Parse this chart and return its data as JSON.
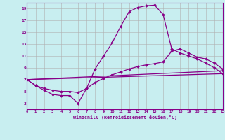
{
  "xlabel": "Windchill (Refroidissement éolien,°C)",
  "bg_color": "#c8eef0",
  "line_color": "#880088",
  "grid_color": "#b0b0b0",
  "xmin": 0,
  "xmax": 23,
  "ymin": 2,
  "ymax": 20,
  "yticks": [
    3,
    5,
    7,
    9,
    11,
    13,
    15,
    17,
    19
  ],
  "xticks": [
    0,
    1,
    2,
    3,
    4,
    5,
    6,
    7,
    8,
    9,
    10,
    11,
    12,
    13,
    14,
    15,
    16,
    17,
    18,
    19,
    20,
    21,
    22,
    23
  ],
  "lines": [
    {
      "x": [
        0,
        1,
        2,
        3,
        4,
        5,
        6,
        7,
        8,
        9,
        10,
        11,
        12,
        13,
        14,
        15,
        16,
        17,
        18,
        19,
        20,
        21,
        22,
        23
      ],
      "y": [
        7,
        6,
        5.2,
        4.5,
        4.3,
        4.3,
        3.0,
        5.5,
        8.8,
        11.0,
        13.2,
        16.0,
        18.5,
        19.2,
        19.5,
        19.6,
        18.0,
        12.2,
        11.5,
        11.0,
        10.5,
        9.8,
        9.0,
        8.0
      ]
    },
    {
      "x": [
        0,
        1,
        2,
        3,
        4,
        5,
        6,
        7,
        8,
        9,
        10,
        11,
        12,
        13,
        14,
        15,
        16,
        17,
        18,
        19,
        20,
        21,
        22,
        23
      ],
      "y": [
        7,
        6.0,
        5.5,
        5.2,
        5.0,
        5.0,
        4.8,
        5.5,
        6.5,
        7.2,
        7.8,
        8.3,
        8.8,
        9.2,
        9.5,
        9.7,
        10.0,
        11.8,
        12.2,
        11.5,
        10.8,
        10.5,
        9.8,
        8.8
      ]
    },
    {
      "x": [
        0,
        23
      ],
      "y": [
        7,
        8.5
      ]
    },
    {
      "x": [
        0,
        23
      ],
      "y": [
        7,
        8.0
      ]
    }
  ]
}
